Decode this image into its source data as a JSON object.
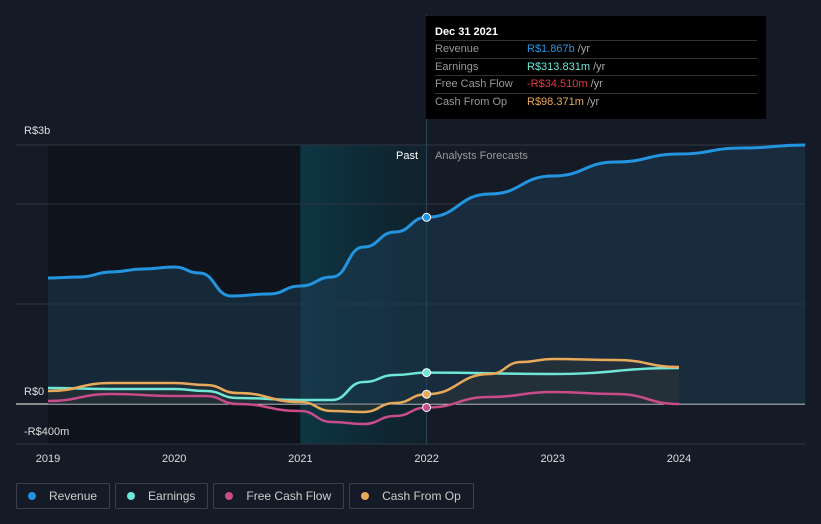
{
  "chart_data": {
    "type": "line",
    "y_unit": "R$ billions",
    "ylim": [
      -0.4,
      2.59
    ],
    "xlim": [
      2019,
      2025
    ],
    "y_tick_labels": [
      "R$3b",
      "R$0",
      "-R$400m"
    ],
    "x_tick_labels": [
      "2019",
      "2020",
      "2021",
      "2022",
      "2023",
      "2024"
    ],
    "x_ticks": [
      2019,
      2020,
      2021,
      2022,
      2023,
      2024
    ],
    "past_label": "Past",
    "forecast_label": "Analysts Forecasts",
    "divider_x": 2022,
    "series": [
      {
        "name": "Revenue",
        "color": "#2394df",
        "x": [
          2019,
          2019.25,
          2019.5,
          2019.75,
          2020,
          2020.2,
          2020.45,
          2020.75,
          2021,
          2021.25,
          2021.5,
          2021.75,
          2022,
          2022.5,
          2023,
          2023.5,
          2024,
          2024.5,
          2025
        ],
        "y": [
          1.26,
          1.27,
          1.32,
          1.35,
          1.37,
          1.31,
          1.08,
          1.1,
          1.18,
          1.27,
          1.57,
          1.72,
          1.867,
          2.1,
          2.28,
          2.42,
          2.5,
          2.56,
          2.59
        ]
      },
      {
        "name": "Earnings",
        "color": "#6ee7d6",
        "x": [
          2019,
          2019.5,
          2020,
          2020.25,
          2020.5,
          2021,
          2021.25,
          2021.5,
          2021.75,
          2022,
          2023,
          2024
        ],
        "y": [
          0.16,
          0.15,
          0.15,
          0.13,
          0.06,
          0.04,
          0.04,
          0.22,
          0.29,
          0.314,
          0.3,
          0.36
        ]
      },
      {
        "name": "Free Cash Flow",
        "color": "#c84b8a",
        "x": [
          2019,
          2019.5,
          2020,
          2020.25,
          2020.5,
          2021,
          2021.25,
          2021.5,
          2021.75,
          2022,
          2022.5,
          2023,
          2023.5,
          2024
        ],
        "y": [
          0.03,
          0.1,
          0.08,
          0.08,
          0.0,
          -0.07,
          -0.18,
          -0.2,
          -0.12,
          -0.035,
          0.07,
          0.12,
          0.1,
          0.0
        ]
      },
      {
        "name": "Cash From Op",
        "color": "#e8a95a",
        "x": [
          2019,
          2019.5,
          2020,
          2020.25,
          2020.5,
          2021,
          2021.25,
          2021.5,
          2021.75,
          2022,
          2022.5,
          2022.75,
          2023,
          2023.5,
          2024
        ],
        "y": [
          0.13,
          0.21,
          0.21,
          0.19,
          0.11,
          0.02,
          -0.07,
          -0.08,
          0.01,
          0.098,
          0.3,
          0.42,
          0.45,
          0.44,
          0.37
        ]
      }
    ],
    "tooltip": {
      "date": "Dec 31 2021",
      "rows": [
        {
          "label": "Revenue",
          "value": "R$1.867b",
          "unit": "/yr",
          "color": "#2394df"
        },
        {
          "label": "Earnings",
          "value": "R$313.831m",
          "unit": "/yr",
          "color": "#6ee7d6"
        },
        {
          "label": "Free Cash Flow",
          "value": "-R$34.510m",
          "unit": "/yr",
          "color": "#e8383d"
        },
        {
          "label": "Cash From Op",
          "value": "R$98.371m",
          "unit": "/yr",
          "color": "#e8a95a"
        }
      ]
    }
  }
}
